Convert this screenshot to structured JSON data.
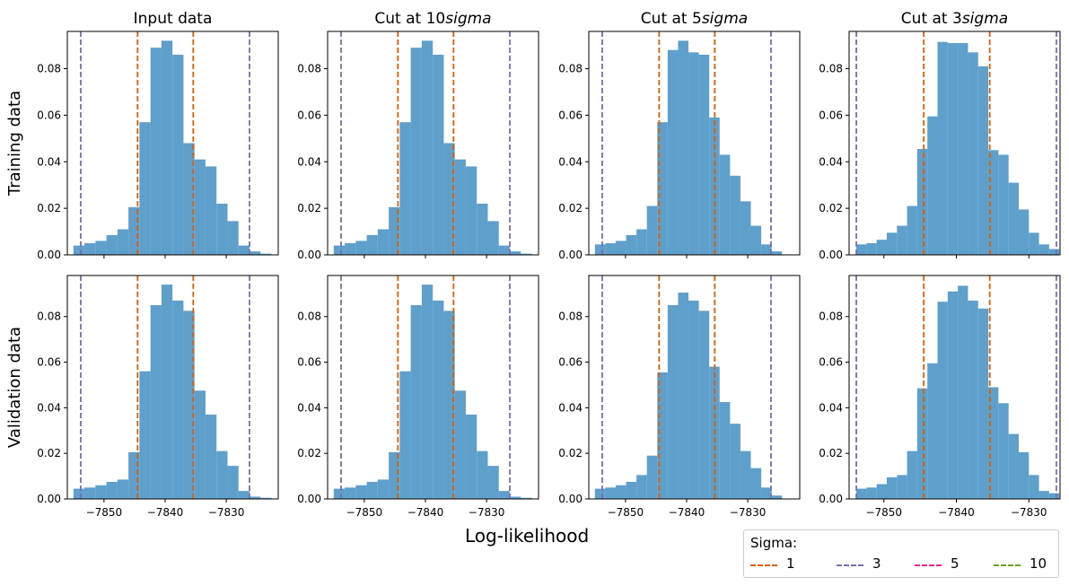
{
  "figure": {
    "xlabel": "Log-likelihood",
    "row_labels": [
      "Training data",
      "Validation data"
    ],
    "col_titles": [
      {
        "main": "Input data",
        "italic": ""
      },
      {
        "main": "Cut at 10",
        "italic": "sigma"
      },
      {
        "main": "Cut at 5",
        "italic": "sigma"
      },
      {
        "main": "Cut at 3",
        "italic": "sigma"
      }
    ],
    "legend": {
      "title": "Sigma:",
      "items": [
        {
          "label": "1",
          "color": "#d95f02"
        },
        {
          "label": "3",
          "color": "#7570b3"
        },
        {
          "label": "5",
          "color": "#e7298a"
        },
        {
          "label": "10",
          "color": "#66a61e"
        }
      ]
    }
  },
  "chart_data": [
    {
      "type": "bar",
      "row": "Training data",
      "title": "Input data",
      "bin_edges": [
        -7855.0,
        -7853.2,
        -7851.4,
        -7849.6,
        -7847.8,
        -7846.0,
        -7844.2,
        -7842.4,
        -7840.6,
        -7838.8,
        -7837.0,
        -7835.2,
        -7833.4,
        -7831.6,
        -7829.8,
        -7828.0,
        -7826.2,
        -7824.4,
        -7822.6
      ],
      "values": [
        0.004,
        0.005,
        0.006,
        0.0085,
        0.011,
        0.0205,
        0.057,
        0.089,
        0.092,
        0.086,
        0.048,
        0.041,
        0.038,
        0.022,
        0.0145,
        0.004,
        0.0015,
        0.0005
      ],
      "vlines": [
        {
          "x": -7853.8,
          "sigma": 3,
          "color": "#7570b3"
        },
        {
          "x": -7844.5,
          "sigma": 1,
          "color": "#d95f02"
        },
        {
          "x": -7835.4,
          "sigma": 1,
          "color": "#d95f02"
        },
        {
          "x": -7826.2,
          "sigma": 3,
          "color": "#7570b3"
        }
      ],
      "xlim": [
        -7856.0,
        -7821.5
      ],
      "ylim": [
        0,
        0.096
      ],
      "yticks": [
        0.0,
        0.02,
        0.04,
        0.06,
        0.08
      ],
      "xticks": [
        -7850,
        -7840,
        -7830
      ]
    },
    {
      "type": "bar",
      "row": "Training data",
      "title": "Cut at 10sigma",
      "bin_edges": [
        -7855.0,
        -7853.2,
        -7851.4,
        -7849.6,
        -7847.8,
        -7846.0,
        -7844.2,
        -7842.4,
        -7840.6,
        -7838.8,
        -7837.0,
        -7835.2,
        -7833.4,
        -7831.6,
        -7829.8,
        -7828.0,
        -7826.2,
        -7824.4,
        -7822.6
      ],
      "values": [
        0.004,
        0.005,
        0.006,
        0.0085,
        0.011,
        0.0205,
        0.057,
        0.089,
        0.092,
        0.086,
        0.048,
        0.041,
        0.038,
        0.022,
        0.0145,
        0.004,
        0.0015,
        0.0005
      ],
      "vlines": [
        {
          "x": -7853.8,
          "sigma": 3,
          "color": "#7570b3"
        },
        {
          "x": -7844.5,
          "sigma": 1,
          "color": "#d95f02"
        },
        {
          "x": -7835.4,
          "sigma": 1,
          "color": "#d95f02"
        },
        {
          "x": -7826.2,
          "sigma": 3,
          "color": "#7570b3"
        }
      ],
      "xlim": [
        -7856.0,
        -7821.5
      ],
      "ylim": [
        0,
        0.096
      ],
      "yticks": [
        0.0,
        0.02,
        0.04,
        0.06,
        0.08
      ],
      "xticks": [
        -7850,
        -7840,
        -7830
      ]
    },
    {
      "type": "bar",
      "row": "Training data",
      "title": "Cut at 5sigma",
      "bin_edges": [
        -7855.0,
        -7853.3,
        -7851.6,
        -7849.9,
        -7848.2,
        -7846.5,
        -7844.8,
        -7843.1,
        -7841.4,
        -7839.7,
        -7838.0,
        -7836.3,
        -7834.6,
        -7832.9,
        -7831.2,
        -7829.5,
        -7827.8,
        -7826.1,
        -7824.4
      ],
      "values": [
        0.0045,
        0.005,
        0.006,
        0.0085,
        0.011,
        0.021,
        0.057,
        0.088,
        0.092,
        0.087,
        0.086,
        0.059,
        0.043,
        0.034,
        0.023,
        0.0125,
        0.0045,
        0.0015
      ],
      "vlines": [
        {
          "x": -7853.8,
          "sigma": 3,
          "color": "#7570b3"
        },
        {
          "x": -7844.5,
          "sigma": 1,
          "color": "#d95f02"
        },
        {
          "x": -7835.4,
          "sigma": 1,
          "color": "#d95f02"
        },
        {
          "x": -7826.2,
          "sigma": 3,
          "color": "#7570b3"
        }
      ],
      "xlim": [
        -7856.0,
        -7821.5
      ],
      "ylim": [
        0,
        0.096
      ],
      "yticks": [
        0.0,
        0.02,
        0.04,
        0.06,
        0.08
      ],
      "xticks": [
        -7850,
        -7840,
        -7830
      ]
    },
    {
      "type": "bar",
      "row": "Training data",
      "title": "Cut at 3sigma",
      "bin_edges": [
        -7853.8,
        -7852.4,
        -7851.0,
        -7849.6,
        -7848.2,
        -7846.8,
        -7845.4,
        -7844.0,
        -7842.6,
        -7841.2,
        -7839.8,
        -7838.4,
        -7837.0,
        -7835.6,
        -7834.2,
        -7832.8,
        -7831.4,
        -7830.0,
        -7828.6,
        -7827.2,
        -7825.8
      ],
      "values": [
        0.0045,
        0.005,
        0.0065,
        0.0095,
        0.0125,
        0.021,
        0.0455,
        0.0595,
        0.0915,
        0.091,
        0.091,
        0.087,
        0.081,
        0.045,
        0.043,
        0.031,
        0.0195,
        0.0095,
        0.0045,
        0.0025
      ],
      "vlines": [
        {
          "x": -7853.8,
          "sigma": 3,
          "color": "#7570b3"
        },
        {
          "x": -7844.5,
          "sigma": 1,
          "color": "#d95f02"
        },
        {
          "x": -7835.4,
          "sigma": 1,
          "color": "#d95f02"
        },
        {
          "x": -7826.2,
          "sigma": 3,
          "color": "#7570b3"
        }
      ],
      "xlim": [
        -7854.8,
        -7825.7
      ],
      "ylim": [
        0,
        0.096
      ],
      "yticks": [
        0.0,
        0.02,
        0.04,
        0.06,
        0.08
      ],
      "xticks": [
        -7850,
        -7840,
        -7830
      ]
    },
    {
      "type": "bar",
      "row": "Validation data",
      "title": "Input data",
      "bin_edges": [
        -7855.0,
        -7853.2,
        -7851.4,
        -7849.6,
        -7847.8,
        -7846.0,
        -7844.2,
        -7842.4,
        -7840.6,
        -7838.8,
        -7837.0,
        -7835.2,
        -7833.4,
        -7831.6,
        -7829.8,
        -7828.0,
        -7826.2,
        -7824.4,
        -7822.6
      ],
      "values": [
        0.0045,
        0.005,
        0.006,
        0.0075,
        0.0085,
        0.0205,
        0.056,
        0.085,
        0.094,
        0.087,
        0.0825,
        0.0475,
        0.037,
        0.021,
        0.0145,
        0.0035,
        0.001,
        0.0005
      ],
      "vlines": [
        {
          "x": -7853.8,
          "sigma": 3,
          "color": "#7570b3"
        },
        {
          "x": -7844.5,
          "sigma": 1,
          "color": "#d95f02"
        },
        {
          "x": -7835.4,
          "sigma": 1,
          "color": "#d95f02"
        },
        {
          "x": -7826.2,
          "sigma": 3,
          "color": "#7570b3"
        }
      ],
      "xlim": [
        -7856.0,
        -7821.5
      ],
      "ylim": [
        0,
        0.098
      ],
      "yticks": [
        0.0,
        0.02,
        0.04,
        0.06,
        0.08
      ],
      "xticks": [
        -7850,
        -7840,
        -7830
      ]
    },
    {
      "type": "bar",
      "row": "Validation data",
      "title": "Cut at 10sigma",
      "bin_edges": [
        -7855.0,
        -7853.2,
        -7851.4,
        -7849.6,
        -7847.8,
        -7846.0,
        -7844.2,
        -7842.4,
        -7840.6,
        -7838.8,
        -7837.0,
        -7835.2,
        -7833.4,
        -7831.6,
        -7829.8,
        -7828.0,
        -7826.2,
        -7824.4,
        -7822.6
      ],
      "values": [
        0.0045,
        0.005,
        0.006,
        0.0075,
        0.0085,
        0.0205,
        0.056,
        0.085,
        0.094,
        0.087,
        0.0825,
        0.0475,
        0.037,
        0.021,
        0.0145,
        0.0035,
        0.001,
        0.0005
      ],
      "vlines": [
        {
          "x": -7853.8,
          "sigma": 3,
          "color": "#7570b3"
        },
        {
          "x": -7844.5,
          "sigma": 1,
          "color": "#d95f02"
        },
        {
          "x": -7835.4,
          "sigma": 1,
          "color": "#d95f02"
        },
        {
          "x": -7826.2,
          "sigma": 3,
          "color": "#7570b3"
        }
      ],
      "xlim": [
        -7856.0,
        -7821.5
      ],
      "ylim": [
        0,
        0.098
      ],
      "yticks": [
        0.0,
        0.02,
        0.04,
        0.06,
        0.08
      ],
      "xticks": [
        -7850,
        -7840,
        -7830
      ]
    },
    {
      "type": "bar",
      "row": "Validation data",
      "title": "Cut at 5sigma",
      "bin_edges": [
        -7855.0,
        -7853.3,
        -7851.6,
        -7849.9,
        -7848.2,
        -7846.5,
        -7844.8,
        -7843.1,
        -7841.4,
        -7839.7,
        -7838.0,
        -7836.3,
        -7834.6,
        -7832.9,
        -7831.2,
        -7829.5,
        -7827.8,
        -7826.1,
        -7824.4
      ],
      "values": [
        0.0045,
        0.005,
        0.006,
        0.0075,
        0.0105,
        0.019,
        0.0555,
        0.085,
        0.0905,
        0.087,
        0.0825,
        0.058,
        0.0425,
        0.033,
        0.021,
        0.0135,
        0.005,
        0.0015
      ],
      "vlines": [
        {
          "x": -7853.8,
          "sigma": 3,
          "color": "#7570b3"
        },
        {
          "x": -7844.5,
          "sigma": 1,
          "color": "#d95f02"
        },
        {
          "x": -7835.4,
          "sigma": 1,
          "color": "#d95f02"
        },
        {
          "x": -7826.2,
          "sigma": 3,
          "color": "#7570b3"
        }
      ],
      "xlim": [
        -7856.0,
        -7821.5
      ],
      "ylim": [
        0,
        0.098
      ],
      "yticks": [
        0.0,
        0.02,
        0.04,
        0.06,
        0.08
      ],
      "xticks": [
        -7850,
        -7840,
        -7830
      ]
    },
    {
      "type": "bar",
      "row": "Validation data",
      "title": "Cut at 3sigma",
      "bin_edges": [
        -7853.8,
        -7852.4,
        -7851.0,
        -7849.6,
        -7848.2,
        -7846.8,
        -7845.4,
        -7844.0,
        -7842.6,
        -7841.2,
        -7839.8,
        -7838.4,
        -7837.0,
        -7835.6,
        -7834.2,
        -7832.8,
        -7831.4,
        -7830.0,
        -7828.6,
        -7827.2,
        -7825.8
      ],
      "values": [
        0.0045,
        0.005,
        0.0065,
        0.0095,
        0.0105,
        0.021,
        0.0485,
        0.0595,
        0.0865,
        0.091,
        0.0935,
        0.087,
        0.0835,
        0.049,
        0.042,
        0.0285,
        0.0205,
        0.0105,
        0.0035,
        0.0025
      ],
      "vlines": [
        {
          "x": -7853.8,
          "sigma": 3,
          "color": "#7570b3"
        },
        {
          "x": -7844.5,
          "sigma": 1,
          "color": "#d95f02"
        },
        {
          "x": -7835.4,
          "sigma": 1,
          "color": "#d95f02"
        },
        {
          "x": -7826.2,
          "sigma": 3,
          "color": "#7570b3"
        }
      ],
      "xlim": [
        -7854.8,
        -7825.7
      ],
      "ylim": [
        0,
        0.098
      ],
      "yticks": [
        0.0,
        0.02,
        0.04,
        0.06,
        0.08
      ],
      "xticks": [
        -7850,
        -7840,
        -7830
      ]
    }
  ]
}
